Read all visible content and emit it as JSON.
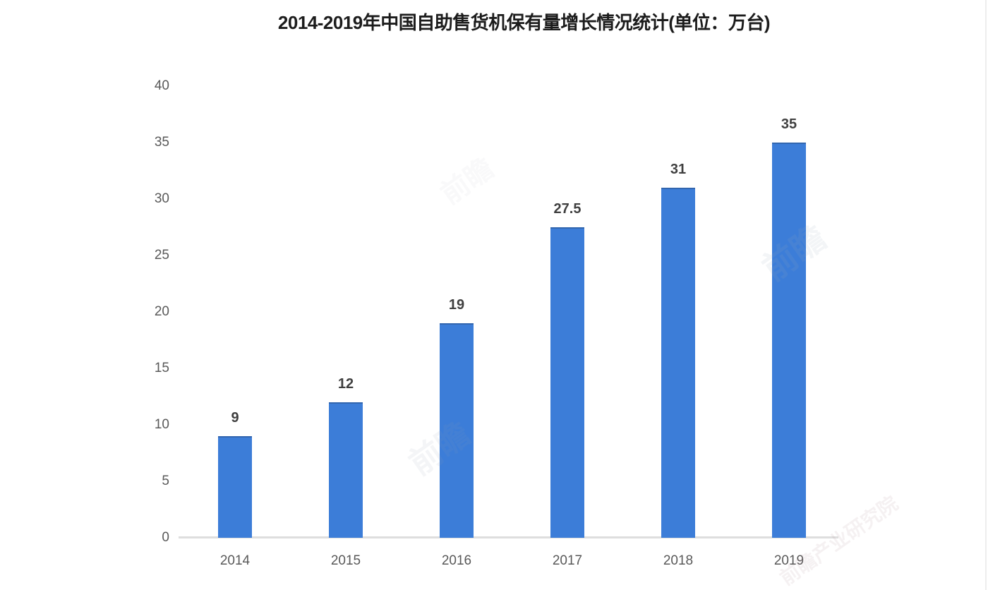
{
  "chart_data": {
    "type": "bar",
    "title": "2014-2019年中国自助售货机保有量增长情况统计(单位：万台)",
    "categories": [
      "2014",
      "2015",
      "2016",
      "2017",
      "2018",
      "2019"
    ],
    "values": [
      9,
      12,
      19,
      27.5,
      31,
      35
    ],
    "value_labels": [
      "9",
      "12",
      "19",
      "27.5",
      "31",
      "35"
    ],
    "yticks": [
      0,
      5,
      10,
      15,
      20,
      25,
      30,
      35,
      40
    ],
    "ylim": [
      0,
      40
    ],
    "xlabel": "",
    "ylabel": "",
    "unit": "万台",
    "grid": "off",
    "legend": "none",
    "bar_color": "#3C7DD8",
    "axis_line_color": "#dedede",
    "title_color": "#1c1c1c",
    "tick_label_color": "#595959",
    "value_label_color": "#3f3f3f",
    "background_color": "#ffffff"
  },
  "watermarks": {
    "short_text": "前瞻",
    "long_text": "前瞻产业研究院"
  }
}
